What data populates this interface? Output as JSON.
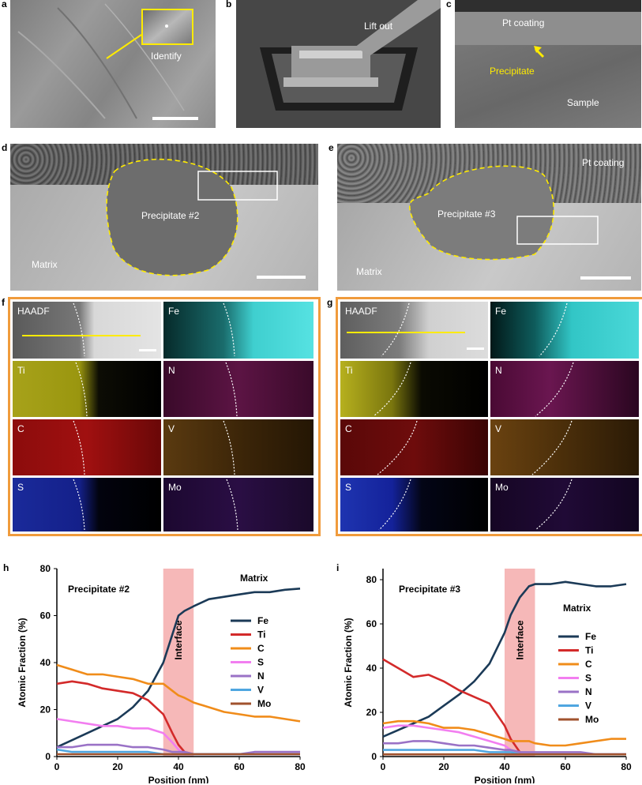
{
  "panel_labels": {
    "a": "a",
    "b": "b",
    "c": "c",
    "d": "d",
    "e": "e",
    "f": "f",
    "g": "g",
    "h": "h",
    "i": "i"
  },
  "panel_a": {
    "inset_label": "Identify"
  },
  "panel_b": {
    "label": "Lift out"
  },
  "panel_c": {
    "coating": "Pt coating",
    "precipitate": "Precipitate",
    "sample": "Sample"
  },
  "panel_d": {
    "precipitate": "Precipitate  #2",
    "matrix": "Matrix"
  },
  "panel_e": {
    "coating": "Pt coating",
    "precipitate": "Precipitate #3",
    "matrix": "Matrix"
  },
  "panel_f": {
    "tiles": [
      "HAADF",
      "Fe",
      "Ti",
      "N",
      "C",
      "V",
      "S",
      "Mo"
    ]
  },
  "panel_g": {
    "tiles": [
      "HAADF",
      "Fe",
      "Ti",
      "N",
      "C",
      "V",
      "S",
      "Mo"
    ]
  },
  "colors": {
    "Fe": "#1b3a57",
    "Ti": "#d32a2a",
    "C": "#f08c1a",
    "S": "#f27ef0",
    "N": "#9a72c6",
    "V": "#4fa6e0",
    "Mo": "#a0522d",
    "interface": "#f6b8b8",
    "frame": "#f09b3c",
    "outline": "#ffeb00"
  },
  "chart_data": [
    {
      "type": "line",
      "panel": "h",
      "title": "Precipitate #2",
      "region_label": "Matrix",
      "interface_label": "Interface",
      "interface_range": [
        35,
        45
      ],
      "xlabel": "Position (nm)",
      "ylabel": "Atomic Fraction (%)",
      "xlim": [
        0,
        80
      ],
      "ylim": [
        0,
        80
      ],
      "xticks": [
        0,
        20,
        40,
        60,
        80
      ],
      "yticks": [
        0,
        20,
        40,
        60,
        80
      ],
      "x": [
        0,
        5,
        10,
        15,
        20,
        25,
        30,
        35,
        38,
        40,
        42,
        45,
        50,
        55,
        60,
        65,
        70,
        75,
        80
      ],
      "series": [
        {
          "name": "Fe",
          "values": [
            4,
            7,
            10,
            13,
            16,
            21,
            28,
            40,
            52,
            60,
            62,
            64,
            67,
            68,
            69,
            70,
            70,
            71,
            71.5
          ]
        },
        {
          "name": "Ti",
          "values": [
            31,
            32,
            31,
            29,
            28,
            27,
            24,
            18,
            10,
            5,
            2,
            1,
            1,
            1,
            1,
            1,
            1,
            1,
            1
          ]
        },
        {
          "name": "C",
          "values": [
            39,
            37,
            35,
            35,
            34,
            33,
            31,
            31,
            28,
            26,
            25,
            23,
            21,
            19,
            18,
            17,
            17,
            16,
            15
          ]
        },
        {
          "name": "S",
          "values": [
            16,
            15,
            14,
            13,
            13,
            12,
            12,
            10,
            6,
            3,
            1,
            1,
            1,
            1,
            1,
            1,
            1,
            1,
            1
          ]
        },
        {
          "name": "N",
          "values": [
            4,
            4,
            5,
            5,
            5,
            4,
            4,
            3,
            2,
            2,
            2,
            1,
            1,
            1,
            1,
            2,
            2,
            2,
            2
          ]
        },
        {
          "name": "V",
          "values": [
            3,
            2,
            2,
            2,
            2,
            2,
            2,
            1,
            1,
            1,
            1,
            1,
            1,
            1,
            1,
            1,
            1,
            1,
            1
          ]
        },
        {
          "name": "Mo",
          "values": [
            1,
            1,
            1,
            1,
            1,
            1,
            1,
            1,
            1,
            1,
            1,
            1,
            1,
            1,
            1,
            1,
            1,
            1,
            1
          ]
        }
      ]
    },
    {
      "type": "line",
      "panel": "i",
      "title": "Precipitate #3",
      "region_label": "Matrix",
      "interface_label": "Interface",
      "interface_range": [
        40,
        50
      ],
      "xlabel": "Position (nm)",
      "ylabel": "Atomic Fraction (%)",
      "xlim": [
        0,
        80
      ],
      "ylim": [
        0,
        85
      ],
      "xticks": [
        0,
        20,
        40,
        60,
        80
      ],
      "yticks": [
        0,
        20,
        40,
        60,
        80
      ],
      "x": [
        0,
        5,
        10,
        15,
        20,
        25,
        30,
        35,
        40,
        42,
        45,
        48,
        50,
        55,
        60,
        65,
        70,
        75,
        80
      ],
      "series": [
        {
          "name": "Fe",
          "values": [
            9,
            12,
            15,
            18,
            23,
            28,
            34,
            42,
            56,
            64,
            72,
            77,
            78,
            78,
            79,
            78,
            77,
            77,
            78
          ]
        },
        {
          "name": "Ti",
          "values": [
            44,
            40,
            36,
            37,
            34,
            30,
            27,
            24,
            14,
            8,
            2,
            1,
            1,
            1,
            1,
            1,
            1,
            1,
            1
          ]
        },
        {
          "name": "C",
          "values": [
            15,
            16,
            16,
            15,
            13,
            13,
            12,
            10,
            8,
            7,
            7,
            7,
            6,
            5,
            5,
            6,
            7,
            8,
            8
          ]
        },
        {
          "name": "S",
          "values": [
            13,
            14,
            14,
            13,
            12,
            11,
            9,
            7,
            5,
            3,
            2,
            1,
            1,
            1,
            1,
            1,
            1,
            1,
            1
          ]
        },
        {
          "name": "N",
          "values": [
            6,
            6,
            7,
            7,
            6,
            5,
            5,
            4,
            3,
            3,
            2,
            2,
            2,
            2,
            2,
            2,
            1,
            1,
            1
          ]
        },
        {
          "name": "V",
          "values": [
            3,
            3,
            3,
            3,
            3,
            3,
            3,
            2,
            2,
            2,
            1,
            1,
            1,
            1,
            1,
            1,
            1,
            1,
            1
          ]
        },
        {
          "name": "Mo",
          "values": [
            1,
            1,
            1,
            1,
            1,
            1,
            1,
            1,
            1,
            1,
            1,
            1,
            1,
            1,
            1,
            1,
            1,
            1,
            1
          ]
        }
      ]
    }
  ]
}
